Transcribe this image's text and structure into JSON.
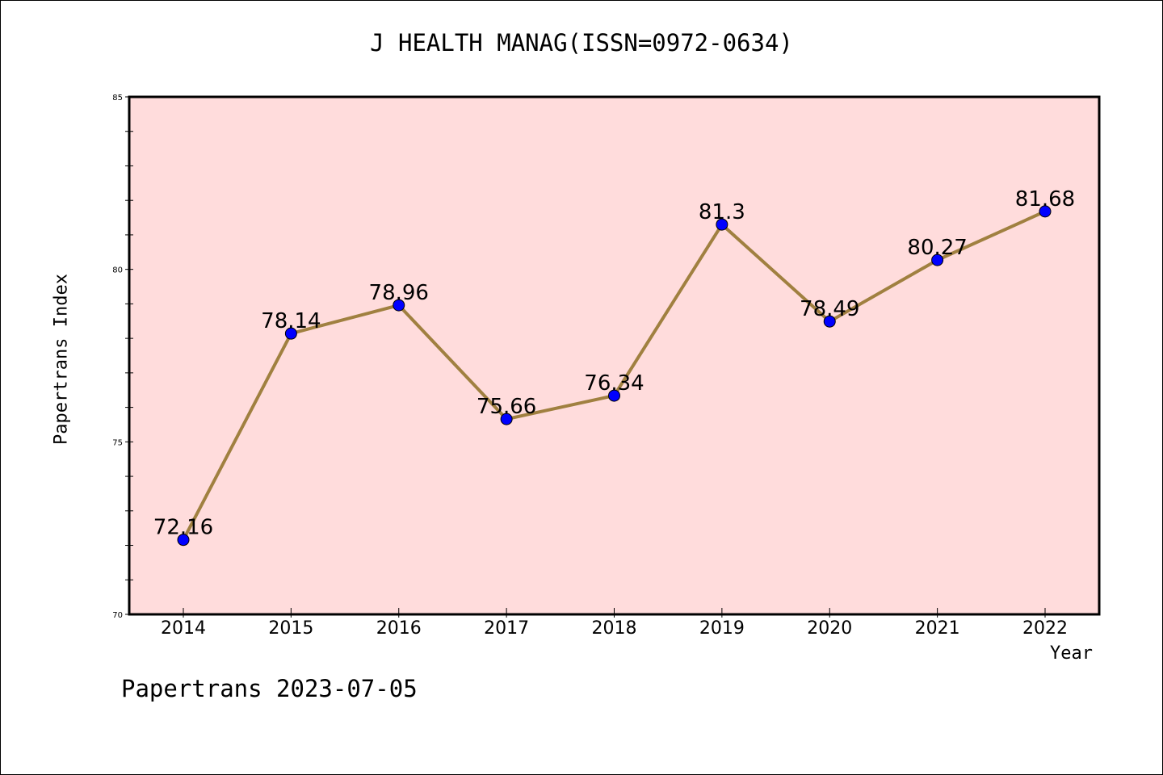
{
  "chart_data": {
    "type": "line",
    "title": "J HEALTH MANAG(ISSN=0972-0634)",
    "xlabel": "Year",
    "ylabel": "Papertrans Index",
    "footer": "Papertrans 2023-07-05",
    "ylim": [
      70,
      85
    ],
    "yticks": [
      "70",
      "75",
      "80",
      "85"
    ],
    "categories": [
      "2014",
      "2015",
      "2016",
      "2017",
      "2018",
      "2019",
      "2020",
      "2021",
      "2022"
    ],
    "series": [
      {
        "values": [
          72.16,
          78.14,
          78.96,
          75.66,
          76.34,
          81.3,
          78.49,
          80.27,
          81.68
        ],
        "labels": [
          "72.16",
          "78.14",
          "78.96",
          "75.66",
          "76.34",
          "81.3",
          "78.49",
          "80.27",
          "81.68"
        ]
      }
    ],
    "grid": false,
    "colors": {
      "plot_background": "#ffdcdc",
      "line": "#a08040",
      "marker": "#0000ff"
    }
  }
}
